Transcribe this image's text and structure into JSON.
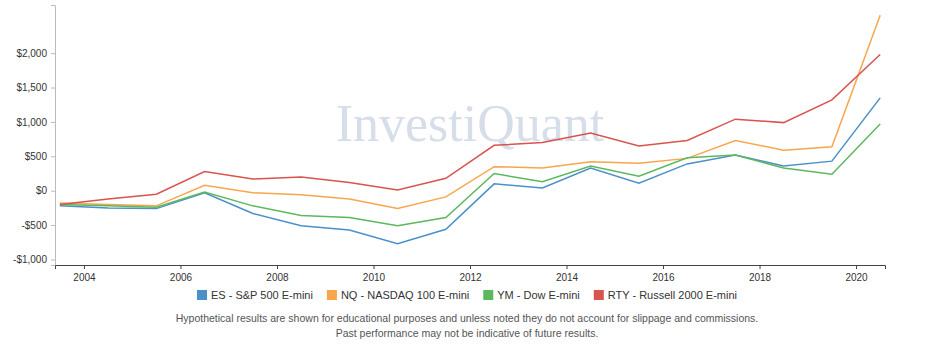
{
  "chart_data": {
    "type": "line",
    "watermark": "InvestiQuant",
    "notes": [
      "Hypothetical results are shown for educational purposes and unless noted they do not account for slippage and commissions.",
      "Past performance may not be indicative of future results."
    ],
    "x": [
      2003.5,
      2004.5,
      2005.5,
      2006.5,
      2007.5,
      2008.5,
      2009.5,
      2010.5,
      2011.5,
      2012.5,
      2013.5,
      2014.5,
      2015.5,
      2016.5,
      2017.5,
      2018.5,
      2019.5,
      2020.5
    ],
    "xlim": [
      2003.4,
      2020.6
    ],
    "xticks": [
      2004,
      2006,
      2008,
      2010,
      2012,
      2014,
      2016,
      2018,
      2020
    ],
    "ylim": [
      -1080,
      2700
    ],
    "yticks": [
      {
        "value": -1000,
        "label": "-$1,000"
      },
      {
        "value": -500,
        "label": "-$500"
      },
      {
        "value": 0,
        "label": "$0"
      },
      {
        "value": 500,
        "label": "$500"
      },
      {
        "value": 1000,
        "label": "$1,000"
      },
      {
        "value": 1500,
        "label": "$1,500"
      },
      {
        "value": 2000,
        "label": "$2,000"
      }
    ],
    "grid": false,
    "legend": "bottom",
    "series": [
      {
        "name": "ES - S&P 500 E-mini",
        "color": "#4a90c9",
        "values": [
          -220,
          -250,
          -260,
          -30,
          -330,
          -510,
          -570,
          -770,
          -560,
          100,
          40,
          330,
          110,
          390,
          520,
          360,
          430,
          1350
        ]
      },
      {
        "name": "NQ - NASDAQ 100 E-mini",
        "color": "#f7a64c",
        "values": [
          -180,
          -200,
          -220,
          80,
          -30,
          -60,
          -120,
          -260,
          -90,
          350,
          330,
          420,
          400,
          470,
          730,
          590,
          640,
          2550
        ]
      },
      {
        "name": "YM - Dow E-mini",
        "color": "#5cb85c",
        "values": [
          -200,
          -220,
          -240,
          -20,
          -220,
          -360,
          -390,
          -510,
          -390,
          250,
          130,
          360,
          210,
          480,
          520,
          330,
          240,
          970
        ]
      },
      {
        "name": "RTY - Russell 2000 E-mini",
        "color": "#d9534f",
        "values": [
          -200,
          -120,
          -50,
          280,
          170,
          200,
          120,
          10,
          180,
          660,
          700,
          840,
          650,
          730,
          1040,
          990,
          1320,
          1980
        ]
      }
    ]
  }
}
